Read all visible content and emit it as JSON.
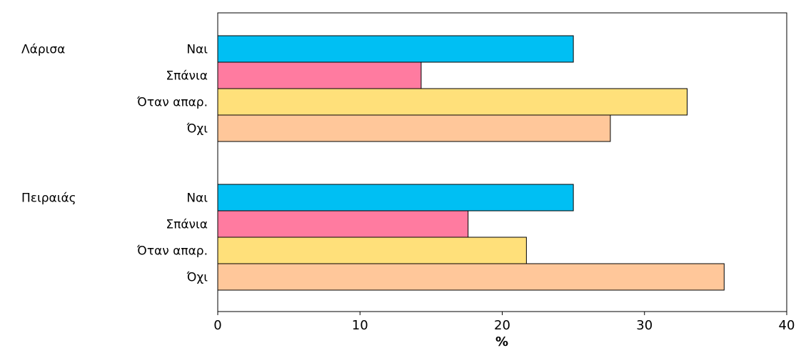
{
  "chart_data": {
    "type": "bar",
    "orientation": "horizontal",
    "title": "",
    "xlabel": "%",
    "ylabel": "",
    "xlim": [
      0,
      40
    ],
    "xticks": [
      0,
      10,
      20,
      30,
      40
    ],
    "grid": false,
    "legend": "none",
    "categories": [
      "Ναι",
      "Σπάνια",
      "Όταν απαρ.",
      "Όχι"
    ],
    "colors": [
      "#00BFF3",
      "#FF7BA0",
      "#FFE07A",
      "#FFC79A"
    ],
    "groups": [
      {
        "name": "Λάρισα",
        "values": [
          25,
          14.3,
          33,
          27.6
        ]
      },
      {
        "name": "Πειραιάς",
        "values": [
          25,
          17.6,
          21.7,
          35.6
        ]
      }
    ]
  }
}
